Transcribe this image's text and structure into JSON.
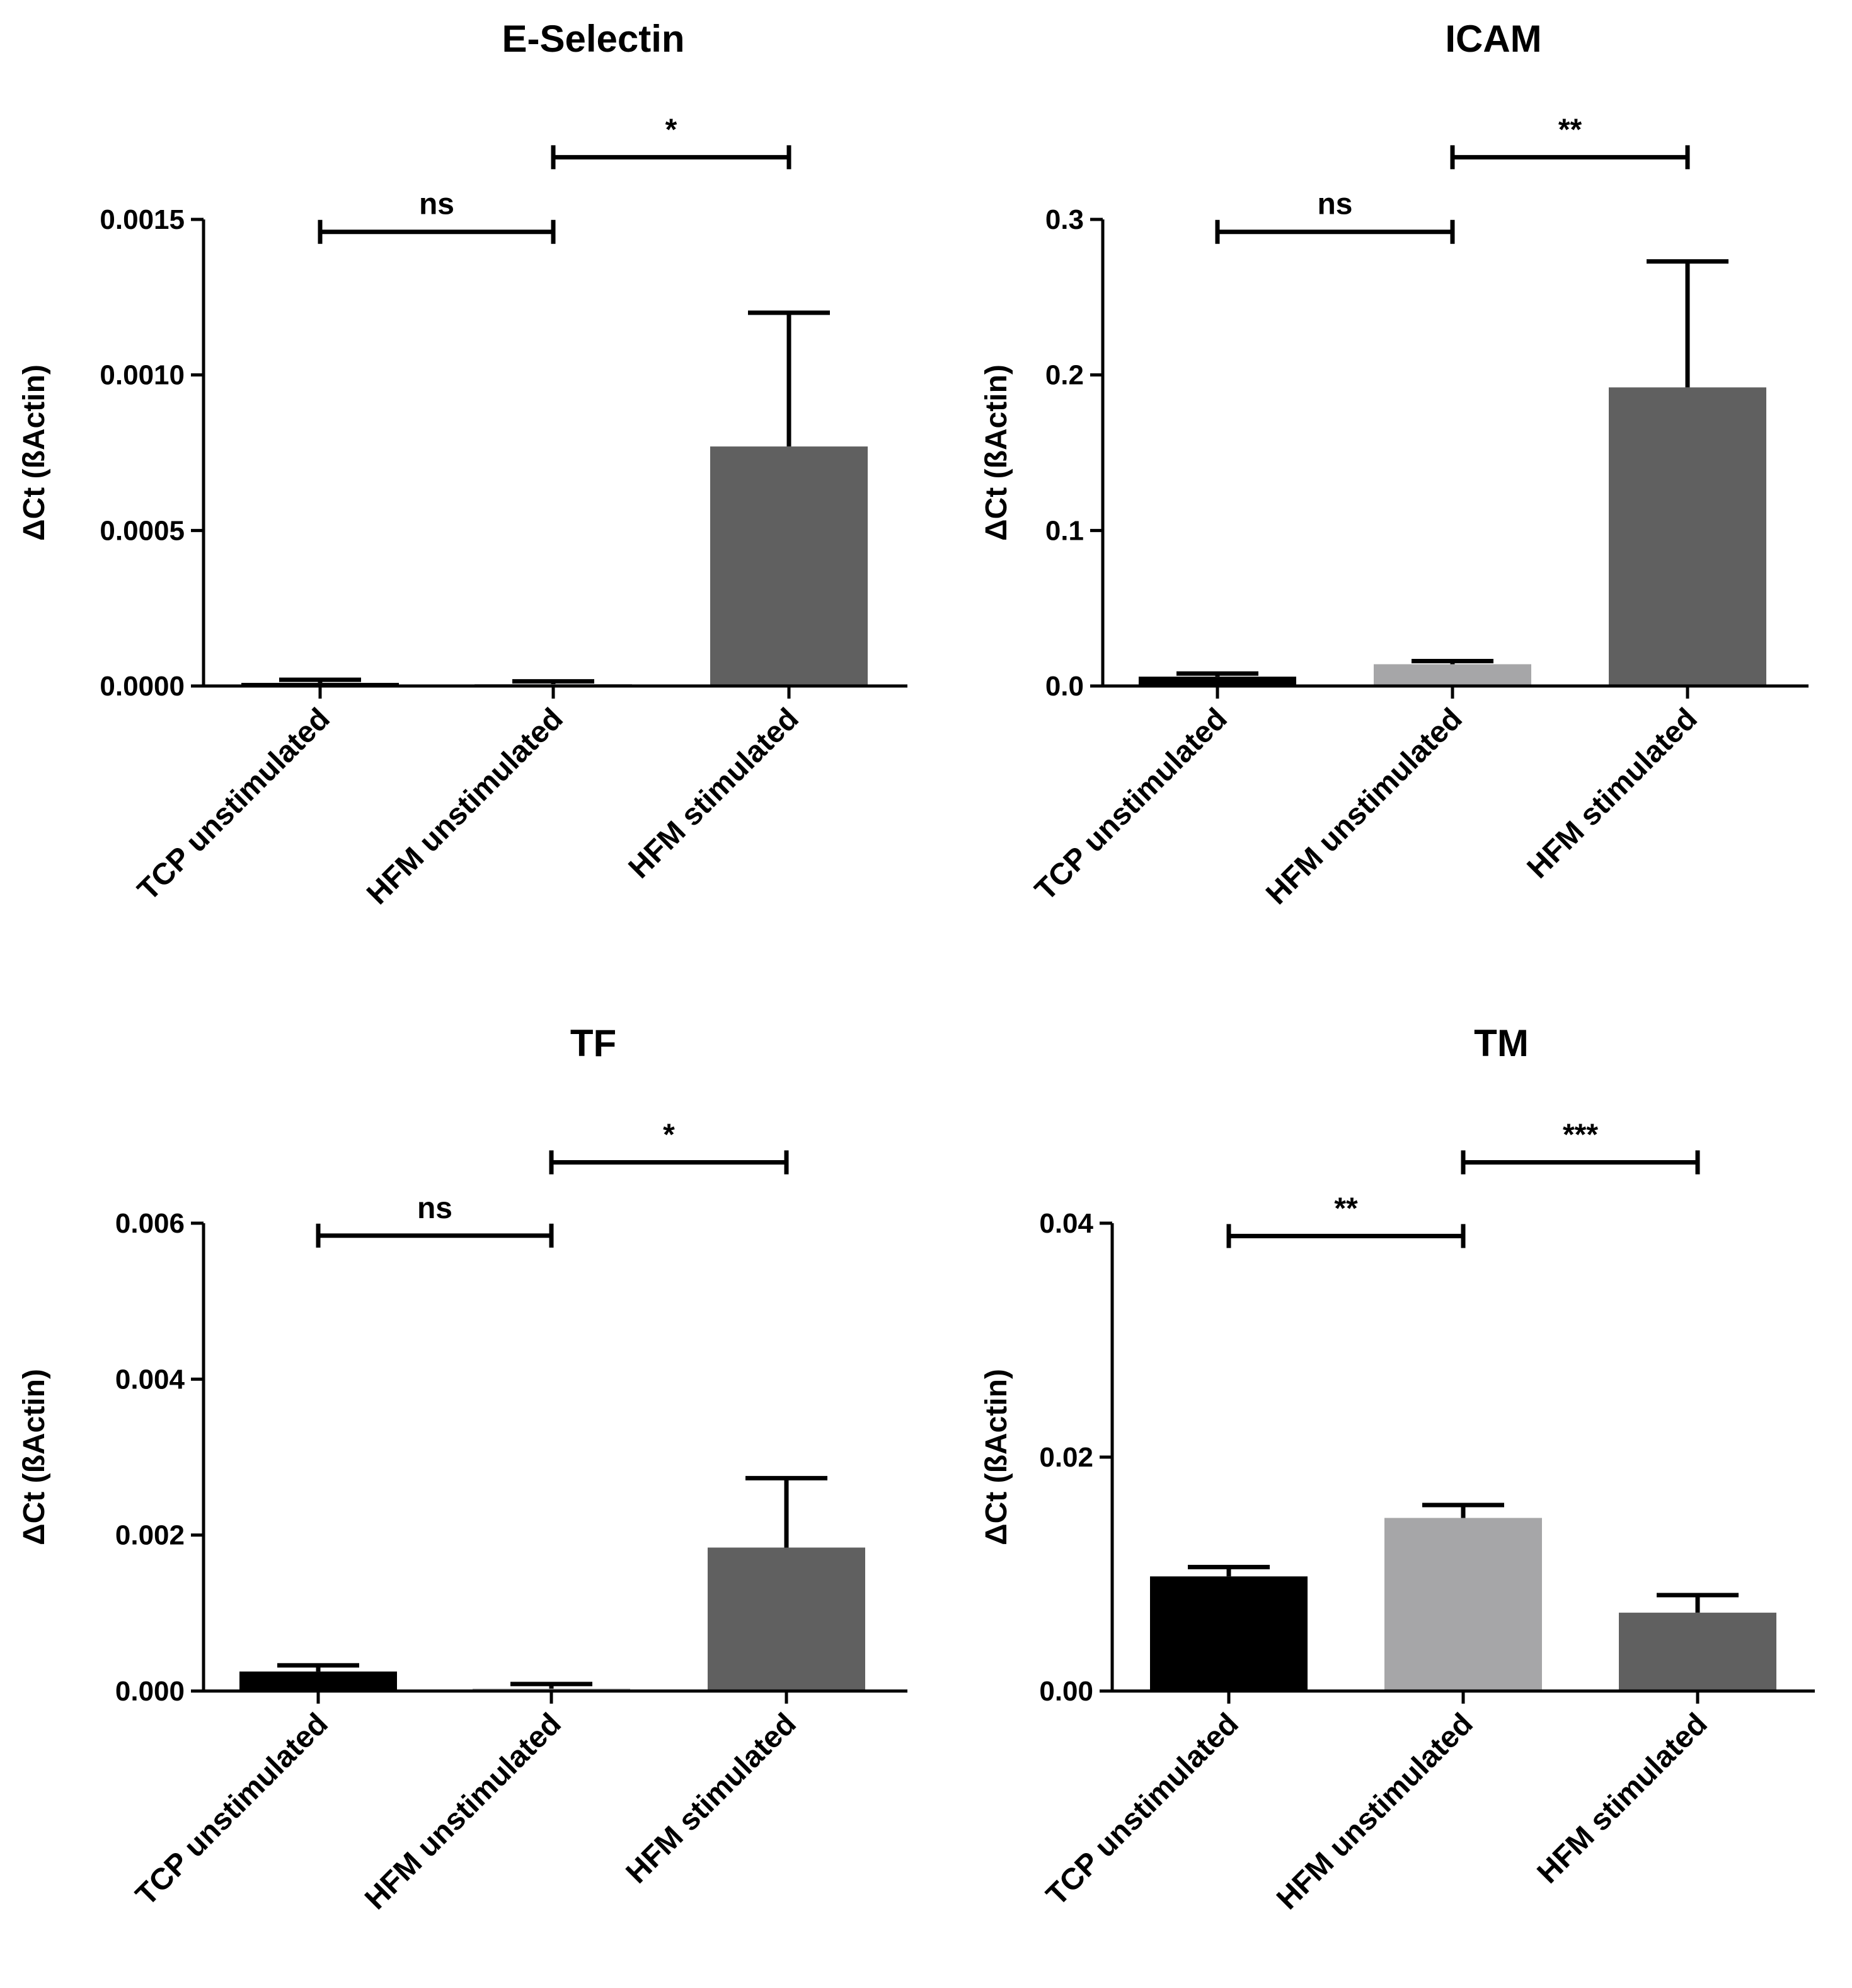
{
  "figure": {
    "colors": {
      "TCP unstimulated": "#000000",
      "HFM unstimulated": "#a6a6a8",
      "HFM stimulated": "#606060"
    }
  },
  "chart_data": [
    {
      "type": "bar",
      "title": "E-Selectin",
      "ylabel": "ΔCt (ßActin)",
      "xlabel": "",
      "categories": [
        "TCP unstimulated",
        "HFM unstimulated",
        "HFM stimulated"
      ],
      "values": [
        1e-05,
        5e-06,
        0.00077
      ],
      "errors": [
        1e-05,
        1e-05,
        0.00043
      ],
      "ylim": [
        0,
        0.0015
      ],
      "yticks": [
        "0.0000",
        "0.0005",
        "0.0010",
        "0.0015"
      ],
      "significance": [
        {
          "from": 0,
          "to": 1,
          "label": "ns",
          "level": 0.00146
        },
        {
          "from": 1,
          "to": 2,
          "label": "*",
          "level": 0.0017
        }
      ]
    },
    {
      "type": "bar",
      "title": "ICAM",
      "ylabel": "ΔCt (ßActin)",
      "xlabel": "",
      "categories": [
        "TCP unstimulated",
        "HFM unstimulated",
        "HFM stimulated"
      ],
      "values": [
        0.006,
        0.014,
        0.192
      ],
      "errors": [
        0.002,
        0.002,
        0.081
      ],
      "ylim": [
        0,
        0.3
      ],
      "yticks": [
        "0.0",
        "0.1",
        "0.2",
        "0.3"
      ],
      "significance": [
        {
          "from": 0,
          "to": 1,
          "label": "ns",
          "level": 0.292
        },
        {
          "from": 1,
          "to": 2,
          "label": "**",
          "level": 0.34
        }
      ]
    },
    {
      "type": "bar",
      "title": "TF",
      "ylabel": "ΔCt (ßActin)",
      "xlabel": "",
      "categories": [
        "TCP unstimulated",
        "HFM unstimulated",
        "HFM stimulated"
      ],
      "values": [
        0.00025,
        3e-05,
        0.00184
      ],
      "errors": [
        8e-05,
        6e-05,
        0.00089
      ],
      "ylim": [
        0,
        0.006
      ],
      "yticks": [
        "0.000",
        "0.002",
        "0.004",
        "0.006"
      ],
      "significance": [
        {
          "from": 0,
          "to": 1,
          "label": "ns",
          "level": 0.00584
        },
        {
          "from": 1,
          "to": 2,
          "label": "*",
          "level": 0.00678
        }
      ]
    },
    {
      "type": "bar",
      "title": "TM",
      "ylabel": "ΔCt (ßActin)",
      "xlabel": "",
      "categories": [
        "TCP unstimulated",
        "HFM unstimulated",
        "HFM stimulated"
      ],
      "values": [
        0.0098,
        0.0148,
        0.0067
      ],
      "errors": [
        0.0008,
        0.0011,
        0.0015
      ],
      "ylim": [
        0,
        0.04
      ],
      "yticks": [
        "0.00",
        "0.02",
        "0.04"
      ],
      "significance": [
        {
          "from": 0,
          "to": 1,
          "label": "**",
          "level": 0.0389
        },
        {
          "from": 1,
          "to": 2,
          "label": "***",
          "level": 0.0452
        }
      ]
    }
  ]
}
